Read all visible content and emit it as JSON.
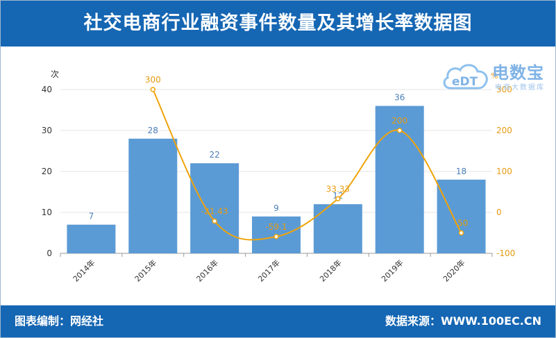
{
  "title": "社交电商行业融资事件数量及其增长率数据图",
  "footer": {
    "left": "图表编制：网经社",
    "right": "数据来源：WWW.100EC.CN"
  },
  "logo": {
    "main": "电数宝",
    "sub": "电商大数据库",
    "mark": "eDT",
    "icon": "cloud-icon"
  },
  "chart_data": {
    "type": "bar",
    "categories": [
      "2014年",
      "2015年",
      "2016年",
      "2017年",
      "2018年",
      "2019年",
      "2020年"
    ],
    "series": [
      {
        "type": "bar",
        "axis": "left",
        "values": [
          7,
          28,
          22,
          9,
          12,
          36,
          18
        ]
      },
      {
        "type": "line",
        "axis": "right",
        "values": [
          null,
          300,
          -21.43,
          -59.1,
          33.33,
          200,
          -50
        ]
      }
    ],
    "y_left": {
      "unit": "次",
      "ticks": [
        0,
        10,
        20,
        30,
        40
      ],
      "range": [
        0,
        40
      ]
    },
    "y_right": {
      "unit": "%",
      "ticks": [
        -100,
        0,
        100,
        200,
        300
      ],
      "range": [
        -100,
        300
      ]
    },
    "grid": true,
    "colors": {
      "bar": "#5b9bd5",
      "bar_label": "#4a7fb8",
      "line": "#f0a30a",
      "line_label": "#e69b12",
      "axis_text": "#333333",
      "grid": "#e4e4e4"
    }
  }
}
